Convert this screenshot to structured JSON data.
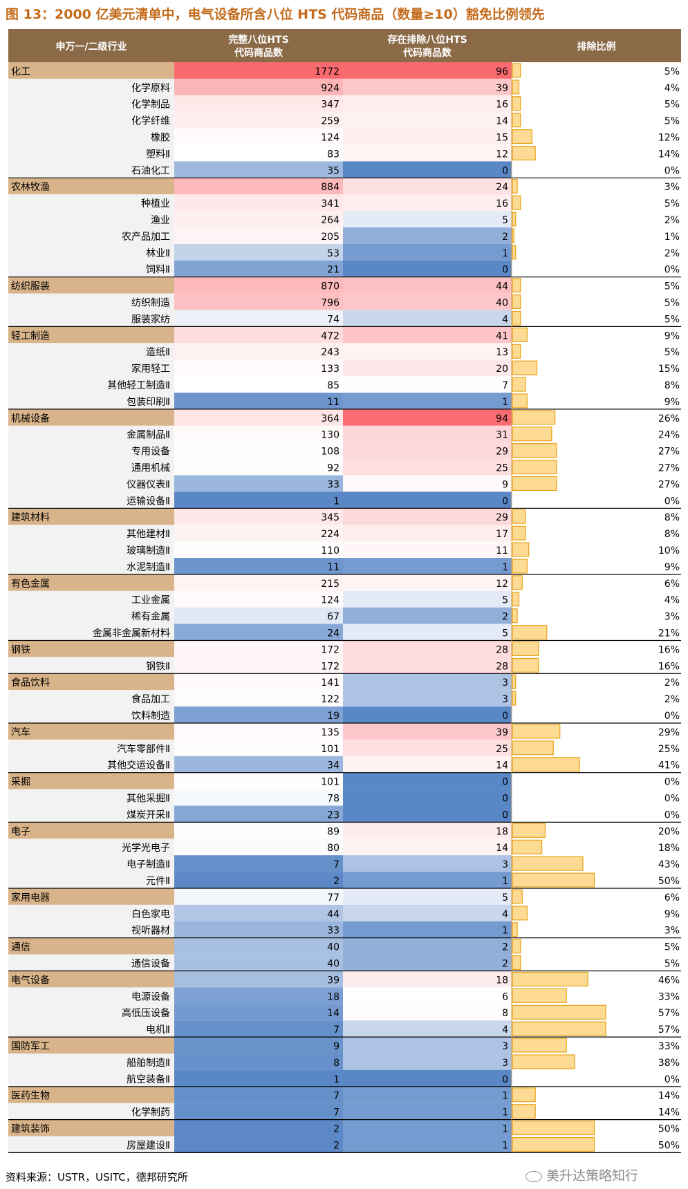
{
  "title": "图 13：2000 亿美元清单中，电气设备所含八位 HTS 代码商品（数量≥10）豁免比例领先",
  "source": "资料来源：USTR，USITC，德邦研究所",
  "watermark": "美升达策略知行",
  "colors": {
    "header_bg": "#8b6a47",
    "level1_bg": "#d9b48a",
    "level2_bg": "#f2f2f2",
    "bar_fill": "#fbbd3c",
    "bar_border": "#e8a317",
    "high": "#f96a6f",
    "mid": "#ffffff",
    "low": "#5a87c6",
    "title": "#c46a1a"
  },
  "chart_data": {
    "type": "table",
    "columns": [
      "申万一/二级行业",
      "完整八位HTS 代码商品数",
      "存在排除八位HTS 代码商品数",
      "排除比例"
    ],
    "rows": [
      {
        "name": "化工",
        "level": 1,
        "total": 1772,
        "excluded": 96,
        "ratio": 5
      },
      {
        "name": "化学原料",
        "level": 2,
        "total": 924,
        "excluded": 39,
        "ratio": 4
      },
      {
        "name": "化学制品",
        "level": 2,
        "total": 347,
        "excluded": 16,
        "ratio": 5
      },
      {
        "name": "化学纤维",
        "level": 2,
        "total": 259,
        "excluded": 14,
        "ratio": 5
      },
      {
        "name": "橡胶",
        "level": 2,
        "total": 124,
        "excluded": 15,
        "ratio": 12
      },
      {
        "name": "塑料Ⅱ",
        "level": 2,
        "total": 83,
        "excluded": 12,
        "ratio": 14
      },
      {
        "name": "石油化工",
        "level": 2,
        "total": 35,
        "excluded": 0,
        "ratio": 0
      },
      {
        "name": "农林牧渔",
        "level": 1,
        "total": 884,
        "excluded": 24,
        "ratio": 3
      },
      {
        "name": "种植业",
        "level": 2,
        "total": 341,
        "excluded": 16,
        "ratio": 5
      },
      {
        "name": "渔业",
        "level": 2,
        "total": 264,
        "excluded": 5,
        "ratio": 2
      },
      {
        "name": "农产品加工",
        "level": 2,
        "total": 205,
        "excluded": 2,
        "ratio": 1
      },
      {
        "name": "林业Ⅱ",
        "level": 2,
        "total": 53,
        "excluded": 1,
        "ratio": 2
      },
      {
        "name": "饲料Ⅱ",
        "level": 2,
        "total": 21,
        "excluded": 0,
        "ratio": 0
      },
      {
        "name": "纺织服装",
        "level": 1,
        "total": 870,
        "excluded": 44,
        "ratio": 5
      },
      {
        "name": "纺织制造",
        "level": 2,
        "total": 796,
        "excluded": 40,
        "ratio": 5
      },
      {
        "name": "服装家纺",
        "level": 2,
        "total": 74,
        "excluded": 4,
        "ratio": 5
      },
      {
        "name": "轻工制造",
        "level": 1,
        "total": 472,
        "excluded": 41,
        "ratio": 9
      },
      {
        "name": "造纸Ⅱ",
        "level": 2,
        "total": 243,
        "excluded": 13,
        "ratio": 5
      },
      {
        "name": "家用轻工",
        "level": 2,
        "total": 133,
        "excluded": 20,
        "ratio": 15
      },
      {
        "name": "其他轻工制造Ⅱ",
        "level": 2,
        "total": 85,
        "excluded": 7,
        "ratio": 8
      },
      {
        "name": "包装印刷Ⅱ",
        "level": 2,
        "total": 11,
        "excluded": 1,
        "ratio": 9
      },
      {
        "name": "机械设备",
        "level": 1,
        "total": 364,
        "excluded": 94,
        "ratio": 26
      },
      {
        "name": "金属制品Ⅱ",
        "level": 2,
        "total": 130,
        "excluded": 31,
        "ratio": 24
      },
      {
        "name": "专用设备",
        "level": 2,
        "total": 108,
        "excluded": 29,
        "ratio": 27
      },
      {
        "name": "通用机械",
        "level": 2,
        "total": 92,
        "excluded": 25,
        "ratio": 27
      },
      {
        "name": "仪器仪表Ⅱ",
        "level": 2,
        "total": 33,
        "excluded": 9,
        "ratio": 27
      },
      {
        "name": "运输设备Ⅱ",
        "level": 2,
        "total": 1,
        "excluded": 0,
        "ratio": 0
      },
      {
        "name": "建筑材料",
        "level": 1,
        "total": 345,
        "excluded": 29,
        "ratio": 8
      },
      {
        "name": "其他建材Ⅱ",
        "level": 2,
        "total": 224,
        "excluded": 17,
        "ratio": 8
      },
      {
        "name": "玻璃制造Ⅱ",
        "level": 2,
        "total": 110,
        "excluded": 11,
        "ratio": 10
      },
      {
        "name": "水泥制造Ⅱ",
        "level": 2,
        "total": 11,
        "excluded": 1,
        "ratio": 9
      },
      {
        "name": "有色金属",
        "level": 1,
        "total": 215,
        "excluded": 12,
        "ratio": 6
      },
      {
        "name": "工业金属",
        "level": 2,
        "total": 124,
        "excluded": 5,
        "ratio": 4
      },
      {
        "name": "稀有金属",
        "level": 2,
        "total": 67,
        "excluded": 2,
        "ratio": 3
      },
      {
        "name": "金属非金属新材料",
        "level": 2,
        "total": 24,
        "excluded": 5,
        "ratio": 21
      },
      {
        "name": "钢铁",
        "level": 1,
        "total": 172,
        "excluded": 28,
        "ratio": 16
      },
      {
        "name": "钢铁Ⅱ",
        "level": 2,
        "total": 172,
        "excluded": 28,
        "ratio": 16
      },
      {
        "name": "食品饮料",
        "level": 1,
        "total": 141,
        "excluded": 3,
        "ratio": 2
      },
      {
        "name": "食品加工",
        "level": 2,
        "total": 122,
        "excluded": 3,
        "ratio": 2
      },
      {
        "name": "饮料制造",
        "level": 2,
        "total": 19,
        "excluded": 0,
        "ratio": 0
      },
      {
        "name": "汽车",
        "level": 1,
        "total": 135,
        "excluded": 39,
        "ratio": 29
      },
      {
        "name": "汽车零部件Ⅱ",
        "level": 2,
        "total": 101,
        "excluded": 25,
        "ratio": 25
      },
      {
        "name": "其他交运设备Ⅱ",
        "level": 2,
        "total": 34,
        "excluded": 14,
        "ratio": 41
      },
      {
        "name": "采掘",
        "level": 1,
        "total": 101,
        "excluded": 0,
        "ratio": 0
      },
      {
        "name": "其他采掘Ⅱ",
        "level": 2,
        "total": 78,
        "excluded": 0,
        "ratio": 0
      },
      {
        "name": "煤炭开采Ⅱ",
        "level": 2,
        "total": 23,
        "excluded": 0,
        "ratio": 0
      },
      {
        "name": "电子",
        "level": 1,
        "total": 89,
        "excluded": 18,
        "ratio": 20
      },
      {
        "name": "光学光电子",
        "level": 2,
        "total": 80,
        "excluded": 14,
        "ratio": 18
      },
      {
        "name": "电子制造Ⅱ",
        "level": 2,
        "total": 7,
        "excluded": 3,
        "ratio": 43
      },
      {
        "name": "元件Ⅱ",
        "level": 2,
        "total": 2,
        "excluded": 1,
        "ratio": 50
      },
      {
        "name": "家用电器",
        "level": 1,
        "total": 77,
        "excluded": 5,
        "ratio": 6
      },
      {
        "name": "白色家电",
        "level": 2,
        "total": 44,
        "excluded": 4,
        "ratio": 9
      },
      {
        "name": "视听器材",
        "level": 2,
        "total": 33,
        "excluded": 1,
        "ratio": 3
      },
      {
        "name": "通信",
        "level": 1,
        "total": 40,
        "excluded": 2,
        "ratio": 5
      },
      {
        "name": "通信设备",
        "level": 2,
        "total": 40,
        "excluded": 2,
        "ratio": 5
      },
      {
        "name": "电气设备",
        "level": 1,
        "total": 39,
        "excluded": 18,
        "ratio": 46
      },
      {
        "name": "电源设备",
        "level": 2,
        "total": 18,
        "excluded": 6,
        "ratio": 33
      },
      {
        "name": "高低压设备",
        "level": 2,
        "total": 14,
        "excluded": 8,
        "ratio": 57
      },
      {
        "name": "电机Ⅱ",
        "level": 2,
        "total": 7,
        "excluded": 4,
        "ratio": 57
      },
      {
        "name": "国防军工",
        "level": 1,
        "total": 9,
        "excluded": 3,
        "ratio": 33
      },
      {
        "name": "船舶制造Ⅱ",
        "level": 2,
        "total": 8,
        "excluded": 3,
        "ratio": 38
      },
      {
        "name": "航空装备Ⅱ",
        "level": 2,
        "total": 1,
        "excluded": 0,
        "ratio": 0
      },
      {
        "name": "医药生物",
        "level": 1,
        "total": 7,
        "excluded": 1,
        "ratio": 14
      },
      {
        "name": "化学制药",
        "level": 2,
        "total": 7,
        "excluded": 1,
        "ratio": 14
      },
      {
        "name": "建筑装饰",
        "level": 1,
        "total": 2,
        "excluded": 1,
        "ratio": 50
      },
      {
        "name": "房屋建设Ⅱ",
        "level": 2,
        "total": 2,
        "excluded": 1,
        "ratio": 50
      }
    ],
    "ratio_unit": "%",
    "ratio_axis_max": 100
  }
}
